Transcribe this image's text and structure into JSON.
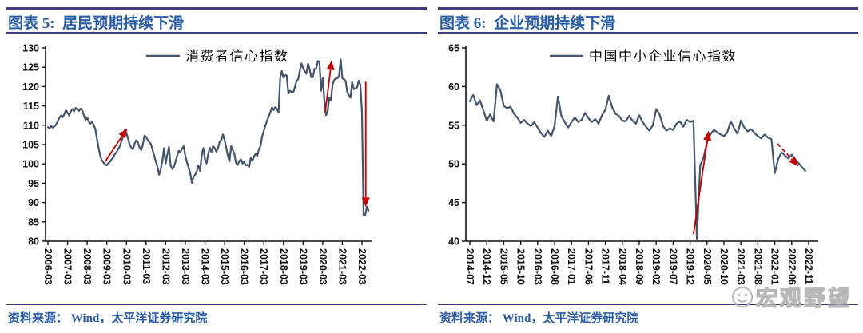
{
  "colors": {
    "rule": "#3F3F80",
    "title": "#2A5CA5",
    "source": "#2A5CA5",
    "line": "#44546A",
    "arrow": "#C00000",
    "axis": "#111111",
    "watermark": "#B3B3B3"
  },
  "panels": [
    {
      "title": "图表 5:  居民预期持续下滑",
      "source": "资料来源： Wind，太平洋证券研究院"
    },
    {
      "title": "图表 6:  企业预期持续下滑",
      "source": "资料来源： Wind，太平洋证券研究院"
    }
  ],
  "watermark": {
    "text": "宏观野望"
  },
  "chart_data": [
    {
      "type": "line",
      "title": "图表 5: 居民预期持续下滑",
      "legend": "消费者信心指数",
      "ylim": [
        80,
        130
      ],
      "ytick": 5,
      "grid": false,
      "x_start": "2006-03",
      "freq": "monthly",
      "tick_interval": 12,
      "x_tick_labels": [
        "2006-03",
        "2007-03",
        "2008-03",
        "2009-03",
        "2010-03",
        "2011-03",
        "2012-03",
        "2013-03",
        "2014-03",
        "2015-03",
        "2016-03",
        "2017-03",
        "2018-03",
        "2019-03",
        "2020-03",
        "2021-03",
        "2022-03"
      ],
      "line_color": "#44546A",
      "values": [
        109.5,
        109.2,
        109.8,
        109.4,
        109.7,
        110.2,
        111.0,
        111.9,
        112.5,
        112.1,
        112.8,
        113.9,
        113.2,
        112.5,
        113.6,
        114.2,
        113.6,
        114.5,
        114.1,
        113.7,
        114.3,
        113.8,
        112.5,
        111.4,
        112.0,
        110.9,
        110.4,
        110.9,
        110.1,
        108.9,
        106.4,
        104.1,
        102.1,
        100.9,
        100.3,
        99.9,
        99.6,
        100.2,
        100.6,
        101.2,
        101.7,
        102.6,
        103.1,
        103.9,
        104.6,
        105.9,
        107.2,
        108.8,
        107.9,
        106.5,
        105.0,
        104.2,
        103.8,
        105.2,
        106.1,
        105.6,
        104.3,
        103.6,
        104.9,
        107.3,
        107.0,
        106.2,
        105.6,
        105.1,
        103.6,
        102.1,
        100.6,
        99.2,
        97.2,
        98.6,
        100.9,
        104.1,
        100.1,
        102.4,
        104.4,
        99.6,
        98.7,
        99.2,
        100.6,
        102.1,
        103.4,
        103.1,
        103.9,
        104.6,
        102.1,
        100.4,
        99.1,
        97.6,
        95.1,
        96.6,
        97.2,
        98.1,
        99.6,
        98.2,
        102.2,
        104.1,
        101.2,
        100.1,
        102.6,
        104.2,
        103.1,
        104.6,
        104.1,
        103.2,
        104.1,
        105.8,
        106.1,
        107.6,
        106.2,
        104.2,
        102.1,
        100.6,
        104.6,
        103.6,
        102.6,
        100.2,
        99.7,
        100.7,
        101.2,
        100.1,
        100.5,
        99.6,
        99.8,
        99.2,
        101.6,
        100.8,
        101.9,
        102.6,
        102.1,
        103.8,
        104.6,
        107.2,
        108.6,
        109.9,
        111.2,
        112.3,
        113.4,
        114.6,
        113.9,
        114.7,
        114.2,
        113.3,
        122.3,
        124.0,
        122.3,
        122.9,
        122.9,
        118.2,
        118.9,
        118.6,
        118.5,
        119.9,
        121.4,
        121.9,
        124.0,
        126.0,
        124.8,
        123.9,
        123.3,
        125.9,
        124.4,
        122.4,
        122.4,
        124.6,
        124.6,
        126.6,
        126.4,
        118.9,
        122.2,
        116.4,
        112.6,
        113.5,
        117.2,
        116.4,
        120.5,
        121.7,
        122.1,
        122.1,
        122.8,
        127.0,
        122.2,
        121.9,
        121.5,
        118.5,
        117.8,
        117.1,
        121.2,
        119.3,
        119.5,
        119.8,
        121.5,
        120.5,
        113.2,
        86.7,
        86.8,
        88.9,
        87.9
      ],
      "annotations": [
        {
          "type": "arrow",
          "style": "solid",
          "from": {
            "i": 35,
            "v": 100.6
          },
          "to": {
            "i": 48.5,
            "v": 109.2
          }
        },
        {
          "type": "arrow",
          "style": "solid",
          "from": {
            "i": 169.5,
            "v": 113.3
          },
          "to": {
            "i": 173.5,
            "v": 126.8
          }
        },
        {
          "type": "arrow",
          "style": "solid",
          "from": {
            "i": 194.3,
            "v": 121.3
          },
          "to": {
            "i": 194.3,
            "v": 88.8
          }
        }
      ]
    },
    {
      "type": "line",
      "title": "图表 6: 企业预期持续下滑",
      "legend": "中国中小企业信心指数",
      "ylim": [
        40,
        65
      ],
      "ytick": 5,
      "grid": false,
      "x_start": "2014-07",
      "freq": "monthly",
      "tick_interval": 5,
      "x_tick_labels": [
        "2014-07",
        "2014-12",
        "2015-05",
        "2015-10",
        "2016-03",
        "2016-08",
        "2017-01",
        "2017-06",
        "2017-11",
        "2018-04",
        "2018-09",
        "2019-02",
        "2019-07",
        "2019-12",
        "2020-05",
        "2020-10",
        "2021-03",
        "2021-08",
        "2022-01",
        "2022-06",
        "2022-11"
      ],
      "line_color": "#44546A",
      "values": [
        58.1,
        58.9,
        57.6,
        58.2,
        56.9,
        55.6,
        56.4,
        55.5,
        60.3,
        59.5,
        57.5,
        57.2,
        57.4,
        56.5,
        56.0,
        55.3,
        55.7,
        55.2,
        54.9,
        55.4,
        54.7,
        54.0,
        53.5,
        54.3,
        53.6,
        54.9,
        58.7,
        56.2,
        55.4,
        54.7,
        55.4,
        56.0,
        55.4,
        55.7,
        56.6,
        55.9,
        55.4,
        55.8,
        55.2,
        56.3,
        57.0,
        58.8,
        57.3,
        56.5,
        56.2,
        55.6,
        55.5,
        56.2,
        55.6,
        55.2,
        56.3,
        55.4,
        54.8,
        54.3,
        55.0,
        57.1,
        56.4,
        54.9,
        54.3,
        54.6,
        54.4,
        55.2,
        55.5,
        54.8,
        55.7,
        55.4,
        55.6,
        40.3,
        49.8,
        50.9,
        52.8,
        53.8,
        54.4,
        54.1,
        53.8,
        53.6,
        54.1,
        55.5,
        54.6,
        53.9,
        55.6,
        54.7,
        54.2,
        54.5,
        54.0,
        53.6,
        53.3,
        53.8,
        53.4,
        53.2,
        48.8,
        50.6,
        51.5,
        51.1,
        50.7,
        51.2,
        50.6,
        50.1,
        49.6,
        49.1
      ],
      "annotations": [
        {
          "type": "arrow",
          "style": "solid",
          "from": {
            "i": 66,
            "v": 40.9
          },
          "to": {
            "i": 70.5,
            "v": 54.3
          }
        },
        {
          "type": "arrow",
          "style": "dashed",
          "from": {
            "i": 90.8,
            "v": 52.6
          },
          "to": {
            "i": 97,
            "v": 49.7
          }
        }
      ]
    }
  ]
}
